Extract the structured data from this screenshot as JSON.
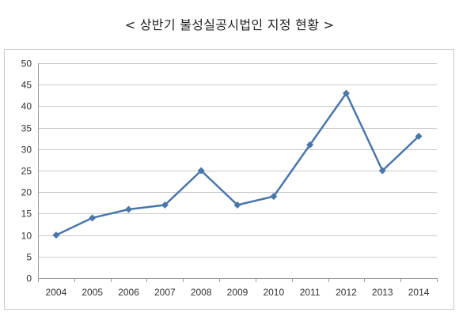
{
  "chart_data": {
    "type": "line",
    "title": "< 상반기 불성실공시법인 지정 현황 >",
    "xlabel": "",
    "ylabel": "",
    "categories": [
      "2004",
      "2005",
      "2006",
      "2007",
      "2008",
      "2009",
      "2010",
      "2011",
      "2012",
      "2013",
      "2014"
    ],
    "series": [
      {
        "values": [
          10,
          14,
          16,
          17,
          25,
          17,
          19,
          31,
          43,
          25,
          33
        ]
      }
    ],
    "ylim": [
      0,
      50
    ],
    "yticks": [
      0,
      5,
      10,
      15,
      20,
      25,
      30,
      35,
      40,
      45,
      50
    ],
    "grid": "horizontal",
    "legend": "none",
    "line_color": "#4a76aa",
    "marker_color": "#4a76aa",
    "marker": "diamond"
  }
}
